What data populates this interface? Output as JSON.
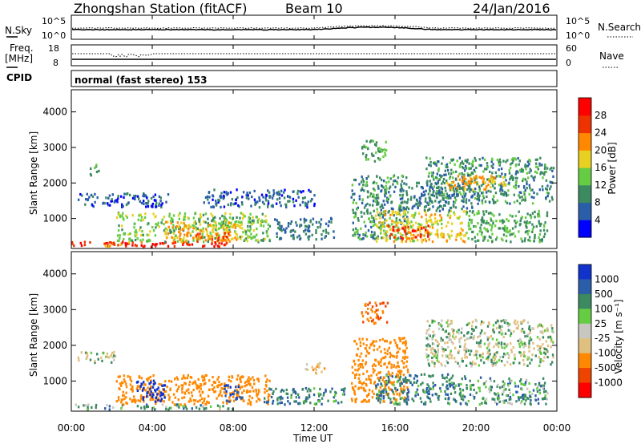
{
  "header": {
    "station": "Zhongshan Station (fitACF)",
    "beam": "Beam 10",
    "date": "24/Jan/2016"
  },
  "top_panels": {
    "nsky_label": "N.Sky",
    "nsky_ticks": [
      "10^5",
      "10^0"
    ],
    "nsearch_label": "N.Search",
    "nsearch_ticks": [
      "10^5",
      "10^0"
    ],
    "freq_label_1": "Freq.",
    "freq_label_2": "[MHz]",
    "freq_ticks": [
      "18",
      "8"
    ],
    "nave_label": "Nave",
    "nave_ticks": [
      "60",
      "0"
    ],
    "cpid_label": "CPID",
    "cpid_text": "normal (fast stereo) 153"
  },
  "chart_data": [
    {
      "type": "heatmap",
      "title": "",
      "ylabel": "Slant Range [km]",
      "y_ticks": [
        "1000",
        "2000",
        "3000",
        "4000"
      ],
      "ylim": [
        180,
        4600
      ],
      "xlim": [
        0,
        24
      ],
      "colorbar_label": "Power [dB]",
      "colorbar_ticks": [
        "4",
        "8",
        "12",
        "16",
        "20",
        "24",
        "28"
      ],
      "colorbar_colors": [
        "#0000ff",
        "#2a5ea8",
        "#3b8a60",
        "#66cc44",
        "#e8d020",
        "#ff8800",
        "#ee3300",
        "#ff0000"
      ],
      "patches": [
        {
          "t0": 0.0,
          "t1": 8.0,
          "r0": 190,
          "r1": 330,
          "v": 28
        },
        {
          "t0": 1.6,
          "t1": 3.6,
          "r0": 190,
          "r1": 330,
          "v": 22
        },
        {
          "t0": 2.2,
          "t1": 9.8,
          "r0": 330,
          "r1": 1150,
          "v": 14
        },
        {
          "t0": 4.6,
          "t1": 8.2,
          "r0": 330,
          "r1": 900,
          "v": 20
        },
        {
          "t0": 6.0,
          "t1": 7.8,
          "r0": 330,
          "r1": 600,
          "v": 24
        },
        {
          "t0": 0.3,
          "t1": 4.8,
          "r0": 1300,
          "r1": 1700,
          "v": 6
        },
        {
          "t0": 6.5,
          "t1": 12.0,
          "r0": 1300,
          "r1": 1800,
          "v": 6
        },
        {
          "t0": 10.0,
          "t1": 13.0,
          "r0": 400,
          "r1": 1000,
          "v": 8
        },
        {
          "t0": 13.8,
          "t1": 16.6,
          "r0": 400,
          "r1": 2200,
          "v": 10
        },
        {
          "t0": 14.3,
          "t1": 15.6,
          "r0": 2600,
          "r1": 3200,
          "v": 12
        },
        {
          "t0": 15.0,
          "t1": 19.5,
          "r0": 330,
          "r1": 1200,
          "v": 18
        },
        {
          "t0": 15.6,
          "t1": 17.6,
          "r0": 400,
          "r1": 800,
          "v": 26
        },
        {
          "t0": 16.2,
          "t1": 19.8,
          "r0": 1200,
          "r1": 2000,
          "v": 8
        },
        {
          "t0": 17.5,
          "t1": 23.8,
          "r0": 1400,
          "r1": 2700,
          "v": 10
        },
        {
          "t0": 18.5,
          "t1": 21.5,
          "r0": 1800,
          "r1": 2200,
          "v": 20
        },
        {
          "t0": 19.5,
          "t1": 23.5,
          "r0": 330,
          "r1": 1200,
          "v": 12
        },
        {
          "t0": 0.9,
          "t1": 1.4,
          "r0": 2200,
          "r1": 2500,
          "v": 10
        }
      ]
    },
    {
      "type": "heatmap",
      "title": "",
      "ylabel": "Slant Range [km]",
      "y_ticks": [
        "1000",
        "2000",
        "3000",
        "4000"
      ],
      "ylim": [
        180,
        4600
      ],
      "xlim": [
        0,
        24
      ],
      "colorbar_label": "Velocity [m s⁻¹]",
      "colorbar_ticks": [
        "1000",
        "500",
        "100",
        "25",
        "-25",
        "-100",
        "-500",
        "-1000"
      ],
      "colorbar_colors": [
        "#1133cc",
        "#2a5ea8",
        "#3b8a60",
        "#66cc44",
        "#c8c8c0",
        "#e0c080",
        "#ff8800",
        "#ee4400",
        "#ff0000"
      ],
      "patches": [
        {
          "t0": 0.0,
          "t1": 8.0,
          "r0": 190,
          "r1": 330,
          "v": 50
        },
        {
          "t0": 2.2,
          "t1": 9.8,
          "r0": 330,
          "r1": 1150,
          "v": -300
        },
        {
          "t0": 3.2,
          "t1": 4.6,
          "r0": 400,
          "r1": 1000,
          "v": 600
        },
        {
          "t0": 7.5,
          "t1": 8.4,
          "r0": 400,
          "r1": 900,
          "v": 500
        },
        {
          "t0": 0.3,
          "t1": 2.2,
          "r0": 1500,
          "r1": 1800,
          "v": 0
        },
        {
          "t0": 9.5,
          "t1": 13.5,
          "r0": 330,
          "r1": 800,
          "v": 80
        },
        {
          "t0": 13.8,
          "t1": 16.6,
          "r0": 400,
          "r1": 2200,
          "v": -300
        },
        {
          "t0": 14.3,
          "t1": 15.6,
          "r0": 2600,
          "r1": 3200,
          "v": -500
        },
        {
          "t0": 15.0,
          "t1": 19.5,
          "r0": 330,
          "r1": 1200,
          "v": 80
        },
        {
          "t0": 17.5,
          "t1": 23.8,
          "r0": 1400,
          "r1": 2700,
          "v": 0
        },
        {
          "t0": 19.5,
          "t1": 23.5,
          "r0": 330,
          "r1": 1100,
          "v": 60
        },
        {
          "t0": 11.5,
          "t1": 12.5,
          "r0": 1200,
          "r1": 1500,
          "v": -80
        }
      ]
    }
  ],
  "x_axis": {
    "ticks": [
      "00:00",
      "04:00",
      "08:00",
      "12:00",
      "16:00",
      "20:00",
      "00:00"
    ],
    "label": "Time UT"
  }
}
